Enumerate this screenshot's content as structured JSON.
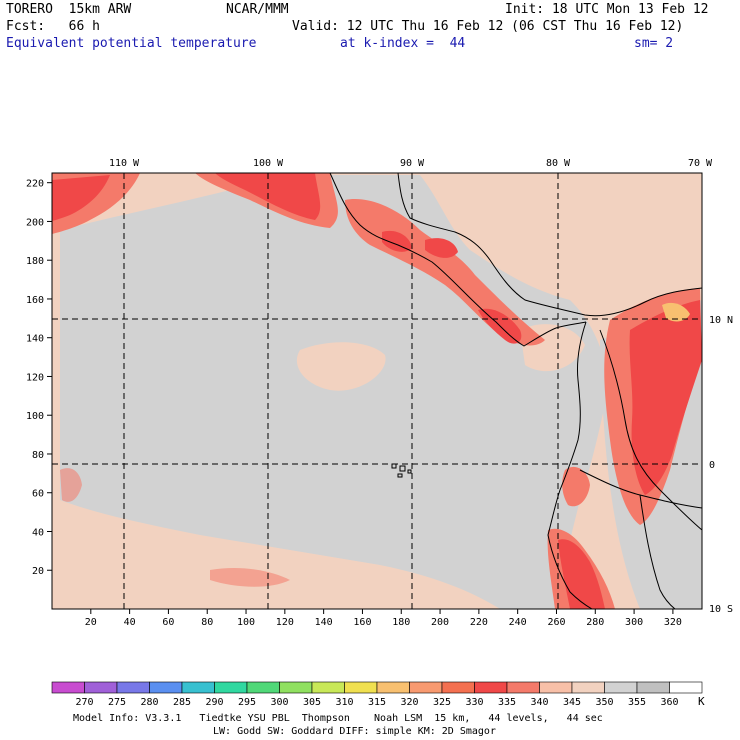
{
  "header": {
    "model": "TORERO  15km ARW",
    "center": "NCAR/MMM",
    "init": "Init: 18 UTC Mon 13 Feb 12",
    "fcst": "Fcst:   66 h",
    "valid": "Valid: 12 UTC Thu 16 Feb 12 (06 CST Thu 16 Feb 12)",
    "field": "Equivalent potential temperature",
    "level": "at k-index =  44",
    "smooth": "sm= 2"
  },
  "map": {
    "lon_labels": [
      "110 W",
      "100 W",
      "90 W",
      "80 W",
      "70 W"
    ],
    "lat_labels": [
      "10 N",
      "0",
      "10 S"
    ],
    "x_ticks": [
      "20",
      "40",
      "60",
      "80",
      "100",
      "120",
      "140",
      "160",
      "180",
      "200",
      "220",
      "240",
      "260",
      "280",
      "300",
      "320"
    ],
    "y_ticks": [
      "220",
      "200",
      "180",
      "160",
      "140",
      "120",
      "100",
      "80",
      "60",
      "40",
      "20"
    ]
  },
  "colorbar": {
    "unit": "K",
    "labels": [
      "270",
      "275",
      "280",
      "285",
      "290",
      "295",
      "300",
      "305",
      "310",
      "315",
      "320",
      "325",
      "330",
      "335",
      "340",
      "345",
      "350",
      "355",
      "360"
    ],
    "colors": [
      "#c84cd0",
      "#a060d8",
      "#7878e8",
      "#5a8ff0",
      "#38c0d0",
      "#30d8a0",
      "#50d878",
      "#90e060",
      "#c8e858",
      "#f0e050",
      "#f8c070",
      "#f89a70",
      "#f47050",
      "#f04848",
      "#f47a6a",
      "#f8c0a8",
      "#f2d2c0",
      "#d2d2d2",
      "#c0c0c0",
      "#ffffff"
    ]
  },
  "footer": {
    "line1": "Model Info: V3.3.1   Tiedtke YSU PBL  Thompson    Noah LSM  15 km,   44 levels,   44 sec",
    "line2": "LW: Godd SW: Goddard DIFF: simple KM: 2D Smagor"
  }
}
